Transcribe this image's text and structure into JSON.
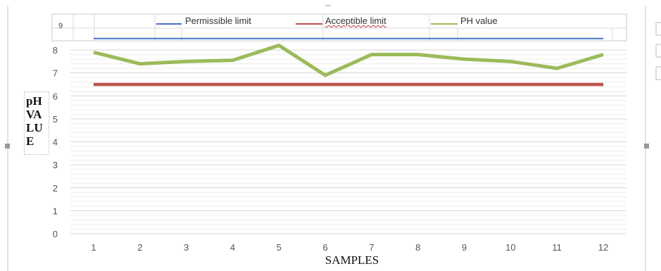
{
  "chart_data": {
    "type": "line",
    "xlabel": "SAMPLES",
    "ylabel": "pH\nVA\nLU\nE",
    "categories": [
      "1",
      "2",
      "3",
      "4",
      "5",
      "6",
      "7",
      "8",
      "9",
      "10",
      "11",
      "12"
    ],
    "ylim": [
      0,
      8
    ],
    "yticks": [
      "0",
      "1",
      "2",
      "3",
      "4",
      "5",
      "6",
      "7",
      "8"
    ],
    "top_cell_value": "9",
    "legend": [
      "Permissible limit",
      "Acceptible limit",
      "PH value"
    ],
    "series": [
      {
        "name": "Permissible limit",
        "color": "#4472C4",
        "values": [
          8.5,
          8.5,
          8.5,
          8.5,
          8.5,
          8.5,
          8.5,
          8.5,
          8.5,
          8.5,
          8.5,
          8.5
        ]
      },
      {
        "name": "Acceptible limit",
        "color": "#C0504D",
        "values": [
          6.5,
          6.5,
          6.5,
          6.5,
          6.5,
          6.5,
          6.5,
          6.5,
          6.5,
          6.5,
          6.5,
          6.5
        ]
      },
      {
        "name": "PH value",
        "color": "#9BBB59",
        "values": [
          7.9,
          7.4,
          7.5,
          7.55,
          8.2,
          6.9,
          7.8,
          7.8,
          7.6,
          7.5,
          7.2,
          7.8
        ]
      }
    ],
    "grid": true,
    "legend_position": "top"
  }
}
